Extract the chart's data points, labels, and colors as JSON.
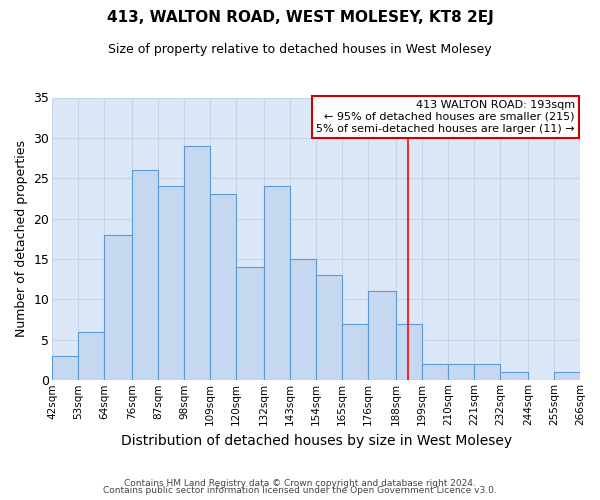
{
  "title": "413, WALTON ROAD, WEST MOLESEY, KT8 2EJ",
  "subtitle": "Size of property relative to detached houses in West Molesey",
  "xlabel": "Distribution of detached houses by size in West Molesey",
  "ylabel": "Number of detached properties",
  "footer_line1": "Contains HM Land Registry data © Crown copyright and database right 2024.",
  "footer_line2": "Contains public sector information licensed under the Open Government Licence v3.0.",
  "bin_edges": [
    42,
    53,
    64,
    76,
    87,
    98,
    109,
    120,
    132,
    143,
    154,
    165,
    176,
    188,
    199,
    210,
    221,
    232,
    244,
    255,
    266
  ],
  "bin_labels": [
    "42sqm",
    "53sqm",
    "64sqm",
    "76sqm",
    "87sqm",
    "98sqm",
    "109sqm",
    "120sqm",
    "132sqm",
    "143sqm",
    "154sqm",
    "165sqm",
    "176sqm",
    "188sqm",
    "199sqm",
    "210sqm",
    "221sqm",
    "232sqm",
    "244sqm",
    "255sqm",
    "266sqm"
  ],
  "counts": [
    3,
    6,
    18,
    26,
    24,
    29,
    23,
    14,
    24,
    15,
    13,
    7,
    11,
    7,
    2,
    2,
    2,
    1,
    0,
    1
  ],
  "bar_color": "#c5d8f0",
  "bar_edge_color": "#5b9bd5",
  "red_line_x": 193,
  "ylim": [
    0,
    35
  ],
  "yticks": [
    0,
    5,
    10,
    15,
    20,
    25,
    30,
    35
  ],
  "legend_title": "413 WALTON ROAD: 193sqm",
  "legend_line1": "← 95% of detached houses are smaller (215)",
  "legend_line2": "5% of semi-detached houses are larger (11) →",
  "legend_border_color": "#cc0000",
  "grid_color": "#c8d4e8",
  "bg_color": "#dce8f8"
}
